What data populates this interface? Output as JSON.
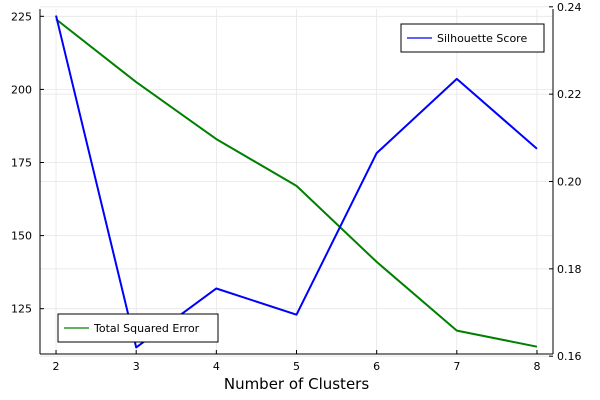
{
  "chart_data": {
    "type": "line",
    "xlabel": "Number of Clusters",
    "x": [
      2,
      3,
      4,
      5,
      6,
      7,
      8
    ],
    "xlim": [
      1.8,
      8.2
    ],
    "xticks": [
      2,
      3,
      4,
      5,
      6,
      7,
      8
    ],
    "grid": true,
    "series": [
      {
        "name": "Total Squared Error",
        "axis": "left",
        "color": "#008000",
        "values": [
          224,
          202.5,
          183,
          167,
          141,
          117.5,
          112
        ],
        "legend_position": "bottom-left"
      },
      {
        "name": "Silhouette Score",
        "axis": "right",
        "color": "#0000ff",
        "values": [
          0.238,
          0.162,
          0.1755,
          0.1695,
          0.2065,
          0.2235,
          0.2075
        ],
        "legend_position": "top-right"
      }
    ],
    "y_left": {
      "ylim": [
        109.5,
        227.5
      ],
      "ticks": [
        125,
        150,
        175,
        200,
        225
      ]
    },
    "y_right": {
      "ylim": [
        0.1605,
        0.2395
      ],
      "ticks": [
        0.16,
        0.18,
        0.2,
        0.22,
        0.24
      ],
      "tick_labels": [
        "0.16",
        "0.18",
        "0.20",
        "0.22",
        "0.24"
      ]
    }
  }
}
